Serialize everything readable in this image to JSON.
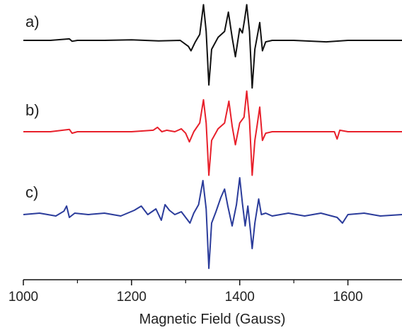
{
  "chart_data": {
    "type": "line",
    "title": "",
    "xlabel": "Magnetic Field (Gauss)",
    "ylabel": "",
    "xlim": [
      1000,
      1700
    ],
    "xticks": [
      1000,
      1200,
      1400,
      1600
    ],
    "y_axis_shown": false,
    "grid": false,
    "legend": "none",
    "series": [
      {
        "panel": "a)",
        "color": "#111111",
        "x": [
          1000,
          1050,
          1085,
          1090,
          1100,
          1150,
          1200,
          1250,
          1290,
          1305,
          1310,
          1318,
          1326,
          1333,
          1338,
          1343,
          1348,
          1360,
          1372,
          1379,
          1386,
          1392,
          1400,
          1405,
          1409,
          1413,
          1418,
          1423,
          1428,
          1432,
          1437,
          1442,
          1448,
          1460,
          1500,
          1560,
          1600,
          1650,
          1700
        ],
        "y": [
          0.0,
          0.0,
          0.05,
          -0.03,
          0.0,
          0.0,
          0.02,
          -0.02,
          0.0,
          -0.2,
          -0.35,
          -0.05,
          0.2,
          1.2,
          0.3,
          -1.5,
          -0.3,
          0.1,
          0.3,
          0.95,
          0.1,
          -0.55,
          0.4,
          0.25,
          0.7,
          1.2,
          0.3,
          -1.6,
          -0.3,
          0.1,
          0.6,
          -0.35,
          -0.05,
          0.0,
          0.0,
          -0.05,
          0.0,
          0.0,
          0.0
        ]
      },
      {
        "panel": "b)",
        "color": "#e8202b",
        "x": [
          1000,
          1050,
          1085,
          1090,
          1100,
          1150,
          1200,
          1240,
          1248,
          1256,
          1265,
          1280,
          1292,
          1300,
          1307,
          1315,
          1326,
          1333,
          1338,
          1343,
          1348,
          1360,
          1372,
          1380,
          1386,
          1392,
          1400,
          1408,
          1413,
          1418,
          1423,
          1428,
          1432,
          1437,
          1442,
          1448,
          1460,
          1500,
          1575,
          1580,
          1585,
          1600,
          1650,
          1700
        ],
        "y": [
          0.0,
          0.0,
          0.08,
          -0.05,
          0.0,
          0.0,
          0.0,
          0.05,
          0.15,
          0.0,
          0.05,
          0.0,
          0.1,
          -0.05,
          -0.35,
          0.0,
          0.3,
          1.1,
          0.3,
          -1.5,
          -0.3,
          0.1,
          0.3,
          1.05,
          0.2,
          -0.45,
          0.3,
          0.5,
          1.4,
          0.4,
          -1.5,
          -0.3,
          0.2,
          0.85,
          -0.3,
          -0.05,
          0.0,
          0.0,
          0.0,
          -0.25,
          0.05,
          0.0,
          0.0,
          0.0
        ]
      },
      {
        "panel": "c)",
        "color": "#2b3c9b",
        "x": [
          1000,
          1030,
          1060,
          1075,
          1080,
          1085,
          1095,
          1120,
          1150,
          1180,
          1205,
          1218,
          1230,
          1245,
          1255,
          1262,
          1270,
          1280,
          1292,
          1300,
          1308,
          1315,
          1324,
          1332,
          1338,
          1343,
          1348,
          1356,
          1365,
          1372,
          1378,
          1386,
          1394,
          1400,
          1405,
          1410,
          1415,
          1420,
          1423,
          1428,
          1435,
          1440,
          1448,
          1460,
          1490,
          1520,
          1550,
          1580,
          1590,
          1600,
          1630,
          1660,
          1700
        ],
        "y": [
          0.0,
          0.05,
          -0.05,
          0.12,
          0.3,
          -0.1,
          0.05,
          0.0,
          0.05,
          -0.05,
          0.15,
          0.3,
          0.0,
          0.2,
          -0.2,
          0.35,
          0.15,
          0.0,
          0.1,
          -0.1,
          -0.3,
          0.05,
          0.35,
          1.2,
          0.2,
          -1.9,
          -0.3,
          0.1,
          0.6,
          0.9,
          0.3,
          -0.4,
          0.35,
          1.3,
          0.4,
          -0.4,
          0.3,
          -0.6,
          -1.2,
          -0.3,
          0.55,
          0.0,
          0.05,
          -0.05,
          0.05,
          -0.05,
          0.05,
          -0.1,
          -0.3,
          0.0,
          0.05,
          -0.05,
          0.0
        ]
      }
    ]
  }
}
